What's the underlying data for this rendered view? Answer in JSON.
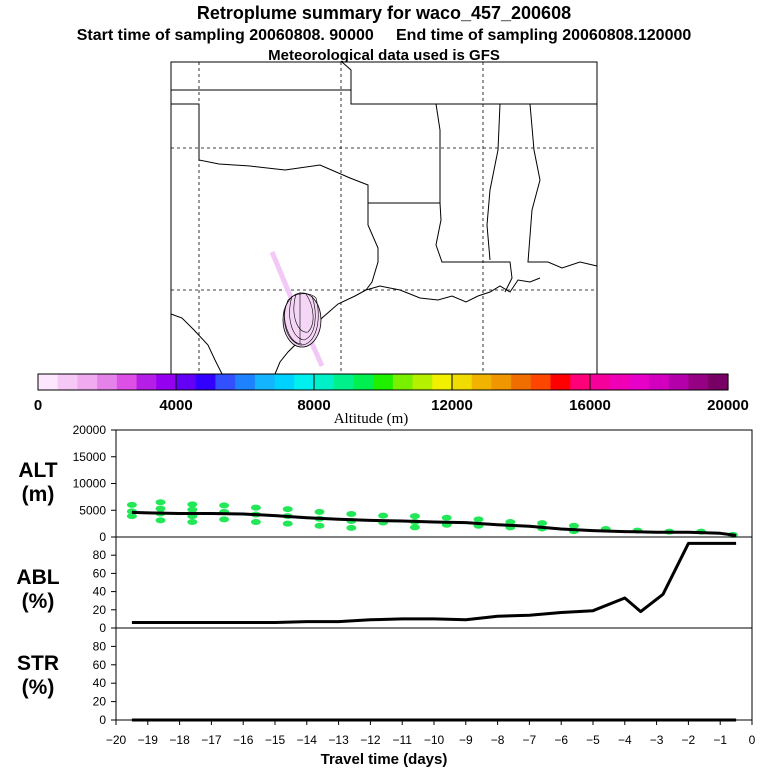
{
  "titles": {
    "line1": "Retroplume summary for waco_457_200608",
    "line2": "Start time of sampling 20060808. 90000     End time of sampling 20060808.120000",
    "line3": "Meteorological data used is GFS"
  },
  "colorbar": {
    "label": "Altitude (m)",
    "ticks": [
      "0",
      "4000",
      "8000",
      "12000",
      "16000",
      "20000"
    ],
    "min": 0,
    "max": 20000,
    "colors": [
      "#ffe6ff",
      "#f5c8f5",
      "#efaaf0",
      "#e582ea",
      "#dc50e6",
      "#b41ee6",
      "#9600f0",
      "#6400f5",
      "#3200ff",
      "#3250ff",
      "#1e82ff",
      "#14b4ff",
      "#00d2ff",
      "#00f0f0",
      "#00f0c8",
      "#00f08c",
      "#00f050",
      "#1ef000",
      "#78f000",
      "#b4f000",
      "#f0f000",
      "#f0dc00",
      "#f0b400",
      "#f09600",
      "#f06e00",
      "#ff4600",
      "#ff0000",
      "#ff0078",
      "#f5009b",
      "#f000b4",
      "#e600c8",
      "#d200be",
      "#b400aa",
      "#960082",
      "#780064"
    ]
  },
  "chart_data": [
    {
      "type": "line",
      "panel": "ALT",
      "ylabel_top": "ALT",
      "ylabel_bottom": "(m)",
      "ylim": [
        0,
        20000
      ],
      "yticks": [
        0,
        5000,
        10000,
        15000,
        20000
      ],
      "ytick_labels": [
        "0",
        "5000",
        "10000",
        "15000",
        "20000"
      ],
      "xlim": [
        -20,
        0
      ],
      "series": [
        {
          "name": "mean altitude",
          "x": [
            -19.5,
            -19,
            -18,
            -17,
            -16,
            -15,
            -14,
            -13,
            -12,
            -11,
            -10,
            -9,
            -8,
            -7,
            -6,
            -5,
            -4,
            -3,
            -2,
            -1,
            -0.5
          ],
          "values": [
            4600,
            4500,
            4400,
            4400,
            4300,
            4000,
            3600,
            3300,
            3100,
            3000,
            2800,
            2700,
            2300,
            2000,
            1500,
            1200,
            1000,
            900,
            900,
            700,
            300
          ]
        }
      ],
      "scatter": {
        "name": "particle altitudes",
        "color": "#22e858",
        "x": [
          -19.5,
          -19.5,
          -19.5,
          -18.6,
          -18.6,
          -18.6,
          -18.6,
          -17.6,
          -17.6,
          -17.6,
          -17.6,
          -16.6,
          -16.6,
          -16.6,
          -15.6,
          -15.6,
          -15.6,
          -14.6,
          -14.6,
          -14.6,
          -13.6,
          -13.6,
          -13.6,
          -12.6,
          -12.6,
          -12.6,
          -11.6,
          -11.6,
          -10.6,
          -10.6,
          -10.6,
          -9.6,
          -9.6,
          -8.6,
          -8.6,
          -7.6,
          -7.6,
          -6.6,
          -6.6,
          -5.6,
          -5.6,
          -4.6,
          -3.6,
          -2.6,
          -1.6,
          -0.6
        ],
        "y": [
          6000,
          4800,
          3900,
          6500,
          5300,
          4400,
          3100,
          6100,
          5100,
          3900,
          2800,
          5900,
          4700,
          3300,
          5500,
          4200,
          2800,
          5200,
          3900,
          2500,
          4700,
          3400,
          2100,
          4300,
          3000,
          1700,
          4000,
          2700,
          3900,
          2800,
          1800,
          3600,
          2300,
          3300,
          2100,
          2800,
          1800,
          2600,
          1600,
          2100,
          1100,
          1500,
          1200,
          1000,
          1000,
          400
        ]
      }
    },
    {
      "type": "line",
      "panel": "ABL",
      "ylabel_top": "ABL",
      "ylabel_bottom": "(%)",
      "ylim": [
        0,
        100
      ],
      "yticks": [
        0,
        20,
        40,
        60,
        80
      ],
      "ytick_labels": [
        "0",
        "20",
        "40",
        "60",
        "80"
      ],
      "xlim": [
        -20,
        0
      ],
      "series": [
        {
          "name": "fraction in ABL",
          "x": [
            -19.5,
            -19,
            -18,
            -17,
            -16,
            -15,
            -14,
            -13,
            -12,
            -11,
            -10,
            -9,
            -8,
            -7,
            -6,
            -5,
            -4,
            -3.5,
            -2.8,
            -2,
            -0.5
          ],
          "values": [
            6,
            6,
            6,
            6,
            6,
            6,
            7,
            7,
            9,
            10,
            10,
            9,
            13,
            14,
            17,
            19,
            33,
            18,
            37,
            93,
            93
          ]
        }
      ]
    },
    {
      "type": "line",
      "panel": "STR",
      "ylabel_top": "STR",
      "ylabel_bottom": "(%)",
      "ylim": [
        0,
        100
      ],
      "yticks": [
        0,
        20,
        40,
        60,
        80
      ],
      "ytick_labels": [
        "0",
        "20",
        "40",
        "60",
        "80"
      ],
      "xlim": [
        -20,
        0
      ],
      "xlabel": "Travel time (days)",
      "xticks": [
        -20,
        -19,
        -18,
        -17,
        -16,
        -15,
        -14,
        -13,
        -12,
        -11,
        -10,
        -9,
        -8,
        -7,
        -6,
        -5,
        -4,
        -3,
        -2,
        -1,
        0
      ],
      "xtick_labels": [
        "−20",
        "−19",
        "−18",
        "−17",
        "−16",
        "−15",
        "−14",
        "−13",
        "−12",
        "−11",
        "−10",
        "−9",
        "−8",
        "−7",
        "−6",
        "−5",
        "−4",
        "−3",
        "−2",
        "−1",
        "0"
      ],
      "series": [
        {
          "name": "fraction in stratosphere",
          "x": [
            -19.5,
            -0.5
          ],
          "values": [
            0,
            0
          ]
        }
      ]
    }
  ]
}
